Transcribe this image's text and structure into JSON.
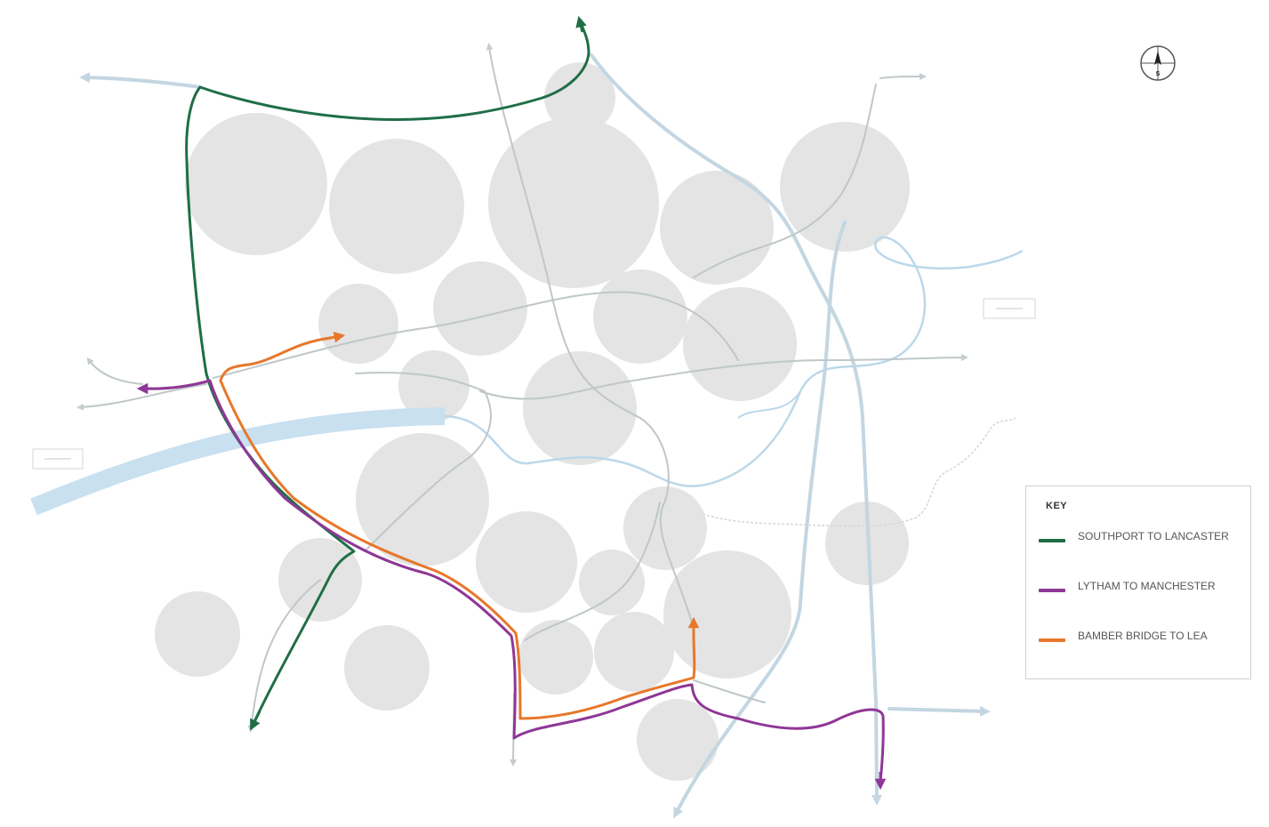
{
  "map": {
    "background": "#ffffff",
    "colors": {
      "settlement": "#e4e4e4",
      "river": "#bcd8ea",
      "road": "#c3ced3",
      "rail": "#9fb2ad",
      "southport_to_lancaster": "#1f6e46",
      "lytham_to_manchester": "#8f3797",
      "bamber_bridge_to_lea": "#e7772b"
    },
    "settlement_count": 26,
    "icons": {
      "compass": "north-arrow-icon",
      "road-sign": "road-sign-icon"
    }
  },
  "compass": {
    "label": "S"
  },
  "legend": {
    "title": "KEY",
    "items": [
      {
        "label": "SOUTHPORT TO LANCASTER",
        "color": "#1f6e46"
      },
      {
        "label": "LYTHAM TO MANCHESTER",
        "color": "#8f3797"
      },
      {
        "label": "BAMBER BRIDGE TO LEA",
        "color": "#e7772b"
      }
    ]
  }
}
